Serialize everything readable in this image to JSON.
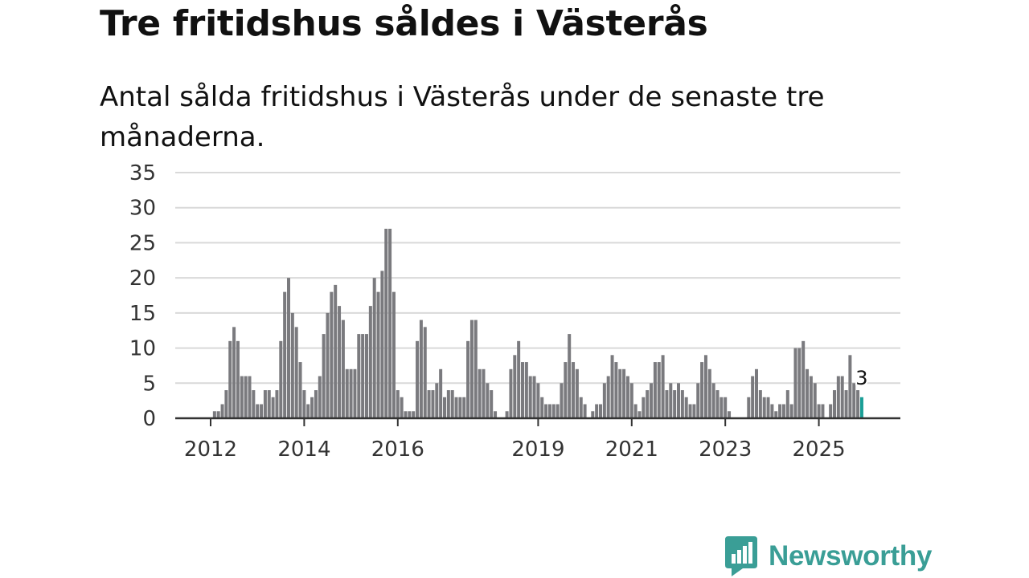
{
  "title": "Tre fritidshus såldes i Västerås",
  "subtitle": "Antal sålda fritidshus i Västerås under de senaste tre månaderna.",
  "brand": {
    "name": "Newsworthy",
    "color": "#3a9e96"
  },
  "colors": {
    "bar": "#7a7a7e",
    "highlight": "#1a9e96",
    "grid": "#d9d9d9",
    "axis": "#333333"
  },
  "chart_data": {
    "type": "bar",
    "title": "Tre fritidshus såldes i Västerås",
    "xlabel": "",
    "ylabel": "",
    "ylim": [
      0,
      35
    ],
    "yticks": [
      0,
      5,
      10,
      15,
      20,
      25,
      30,
      35
    ],
    "xtick_labels": [
      {
        "label": "2012",
        "index": 0
      },
      {
        "label": "2014",
        "index": 24
      },
      {
        "label": "2016",
        "index": 48
      },
      {
        "label": "2019",
        "index": 84
      },
      {
        "label": "2021",
        "index": 108
      },
      {
        "label": "2023",
        "index": 132
      },
      {
        "label": "2025",
        "index": 156
      }
    ],
    "start": "2011-12",
    "frequency": "monthly",
    "values": [
      0,
      1,
      1,
      2,
      4,
      11,
      13,
      11,
      6,
      6,
      6,
      4,
      2,
      2,
      4,
      4,
      3,
      4,
      11,
      18,
      20,
      15,
      13,
      8,
      4,
      2,
      3,
      4,
      6,
      12,
      15,
      18,
      19,
      16,
      14,
      7,
      7,
      7,
      12,
      12,
      12,
      16,
      20,
      18,
      21,
      27,
      27,
      18,
      4,
      3,
      1,
      1,
      1,
      11,
      14,
      13,
      4,
      4,
      5,
      7,
      3,
      4,
      4,
      3,
      3,
      3,
      11,
      14,
      14,
      7,
      7,
      5,
      4,
      1,
      0,
      0,
      1,
      7,
      9,
      11,
      8,
      8,
      6,
      6,
      5,
      3,
      2,
      2,
      2,
      2,
      5,
      8,
      12,
      8,
      7,
      3,
      2,
      0,
      1,
      2,
      2,
      5,
      6,
      9,
      8,
      7,
      7,
      6,
      5,
      2,
      1,
      3,
      4,
      5,
      8,
      8,
      9,
      4,
      5,
      4,
      5,
      4,
      3,
      2,
      2,
      5,
      8,
      9,
      7,
      5,
      4,
      3,
      3,
      1,
      0,
      0,
      0,
      0,
      3,
      6,
      7,
      4,
      3,
      3,
      2,
      1,
      2,
      2,
      4,
      2,
      10,
      10,
      11,
      7,
      6,
      5,
      2,
      2,
      0,
      2,
      4,
      6,
      6,
      4,
      9,
      5,
      4,
      3
    ],
    "highlight_index": 167,
    "annotation": {
      "index": 167,
      "label": "3"
    }
  }
}
